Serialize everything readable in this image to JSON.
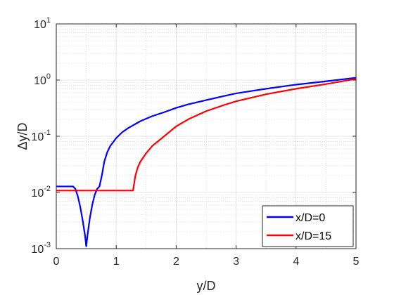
{
  "chart_data": {
    "type": "line",
    "xlabel": "y/D",
    "ylabel": "Δy/D",
    "xlim": [
      0,
      5
    ],
    "ylim": [
      0.001,
      10
    ],
    "yscale": "log",
    "grid": true,
    "minor_grid": true,
    "x_ticks": [
      {
        "value": 0,
        "label": "0"
      },
      {
        "value": 1,
        "label": "1"
      },
      {
        "value": 2,
        "label": "2"
      },
      {
        "value": 3,
        "label": "3"
      },
      {
        "value": 4,
        "label": "4"
      },
      {
        "value": 5,
        "label": "5"
      }
    ],
    "y_ticks": [
      {
        "value": 0.001,
        "base": "10",
        "exp": "-3"
      },
      {
        "value": 0.01,
        "base": "10",
        "exp": "-2"
      },
      {
        "value": 0.1,
        "base": "10",
        "exp": "-1"
      },
      {
        "value": 1,
        "base": "10",
        "exp": "0"
      },
      {
        "value": 10,
        "base": "10",
        "exp": "1"
      }
    ],
    "legend_position": "bottom-right",
    "series": [
      {
        "name": "x/D=0",
        "color": "#0000ff",
        "points": [
          [
            0,
            0.0128
          ],
          [
            0.28,
            0.0128
          ],
          [
            0.32,
            0.0115
          ],
          [
            0.36,
            0.0085
          ],
          [
            0.4,
            0.0055
          ],
          [
            0.44,
            0.0032
          ],
          [
            0.48,
            0.0017
          ],
          [
            0.5,
            0.0011
          ],
          [
            0.52,
            0.0017
          ],
          [
            0.56,
            0.0035
          ],
          [
            0.6,
            0.006
          ],
          [
            0.64,
            0.009
          ],
          [
            0.68,
            0.0115
          ],
          [
            0.72,
            0.0128
          ],
          [
            0.76,
            0.02
          ],
          [
            0.8,
            0.035
          ],
          [
            0.85,
            0.052
          ],
          [
            0.9,
            0.067
          ],
          [
            1.0,
            0.093
          ],
          [
            1.1,
            0.118
          ],
          [
            1.2,
            0.14
          ],
          [
            1.4,
            0.185
          ],
          [
            1.6,
            0.228
          ],
          [
            1.8,
            0.268
          ],
          [
            2.0,
            0.32
          ],
          [
            2.2,
            0.37
          ],
          [
            2.5,
            0.44
          ],
          [
            2.8,
            0.52
          ],
          [
            3.0,
            0.58
          ],
          [
            3.5,
            0.7
          ],
          [
            4.0,
            0.83
          ],
          [
            4.5,
            0.95
          ],
          [
            5.0,
            1.1
          ]
        ]
      },
      {
        "name": "x/D=15",
        "color": "#ff0000",
        "points": [
          [
            0,
            0.0108
          ],
          [
            1.28,
            0.0108
          ],
          [
            1.32,
            0.02
          ],
          [
            1.36,
            0.028
          ],
          [
            1.4,
            0.035
          ],
          [
            1.5,
            0.05
          ],
          [
            1.6,
            0.067
          ],
          [
            1.8,
            0.1
          ],
          [
            2.0,
            0.15
          ],
          [
            2.2,
            0.2
          ],
          [
            2.5,
            0.28
          ],
          [
            2.8,
            0.36
          ],
          [
            3.0,
            0.42
          ],
          [
            3.5,
            0.56
          ],
          [
            4.0,
            0.7
          ],
          [
            4.5,
            0.85
          ],
          [
            5.0,
            1.05
          ]
        ]
      }
    ]
  }
}
